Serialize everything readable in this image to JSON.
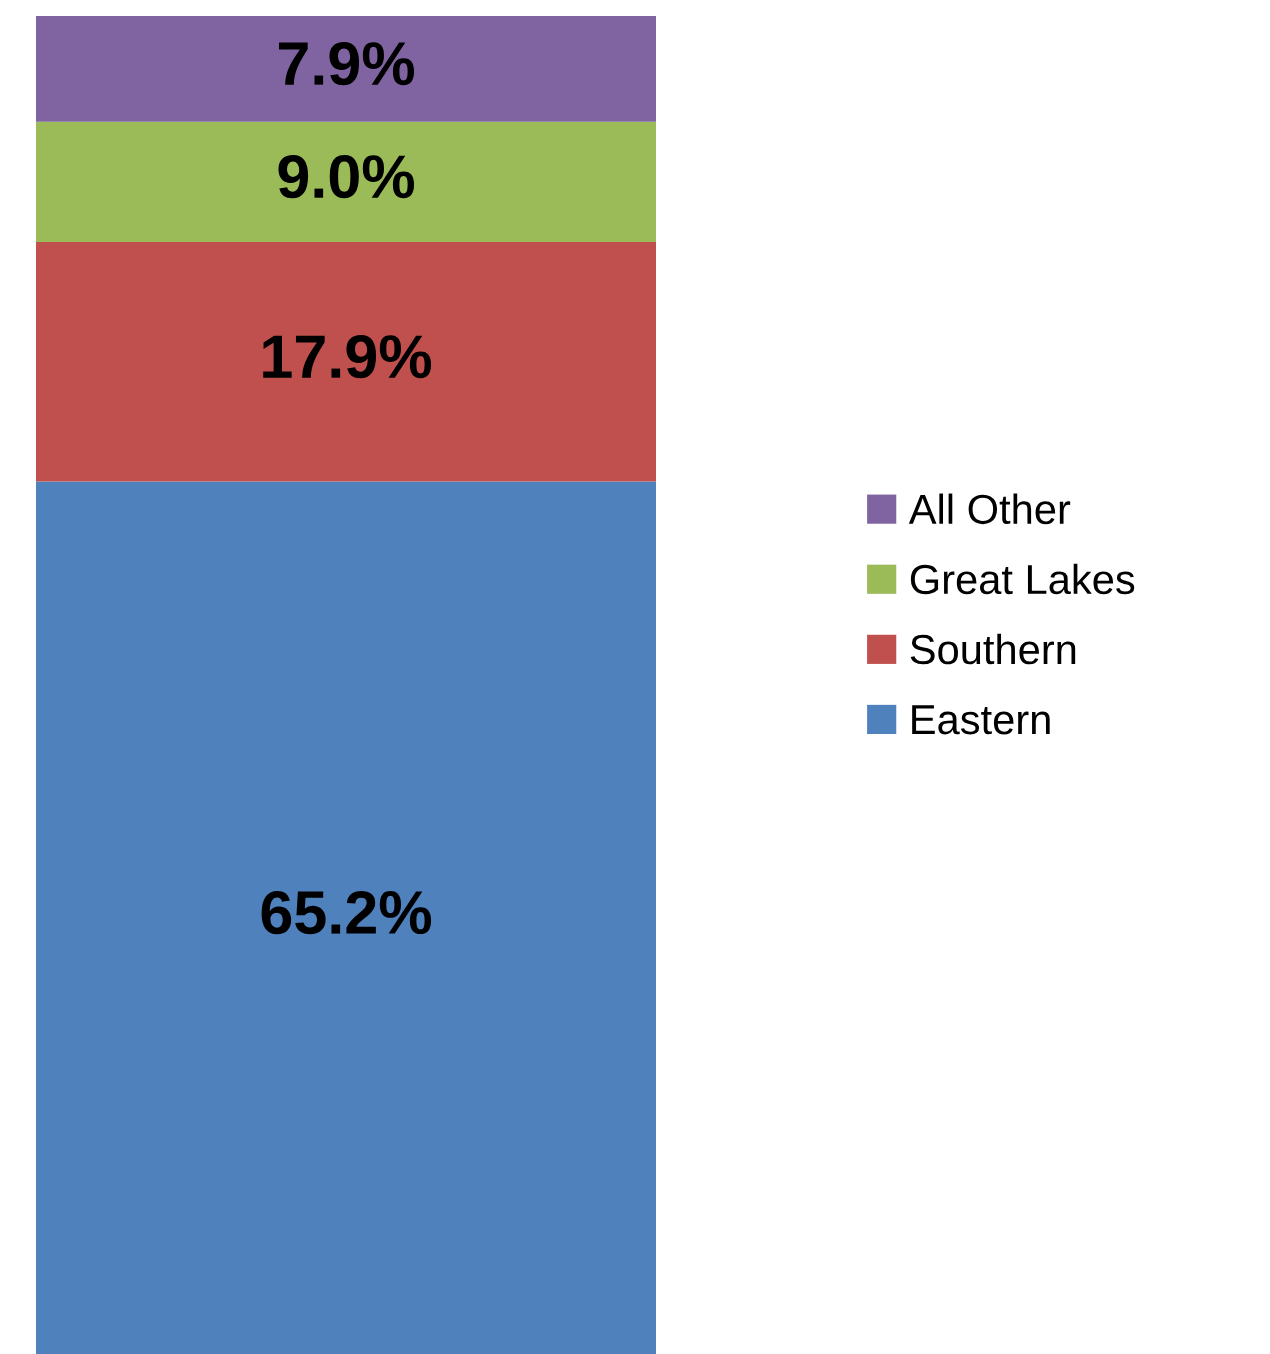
{
  "chart_data": {
    "type": "bar",
    "stacked": true,
    "categories": [
      null
    ],
    "ylim": [
      0,
      100
    ],
    "legend": "right",
    "series": [
      {
        "name": "Eastern",
        "color": "#4f81bd",
        "values": [
          65.2
        ],
        "value_labels": [
          "65.2%"
        ]
      },
      {
        "name": "Southern",
        "color": "#c0504d",
        "values": [
          17.9
        ],
        "value_labels": [
          "17.9%"
        ]
      },
      {
        "name": "Great Lakes",
        "color": "#9bbb59",
        "values": [
          9.0
        ],
        "value_labels": [
          "9.0%"
        ]
      },
      {
        "name": "All Other",
        "color": "#8064a2",
        "values": [
          7.9
        ],
        "value_labels": [
          "7.9%"
        ]
      }
    ]
  }
}
